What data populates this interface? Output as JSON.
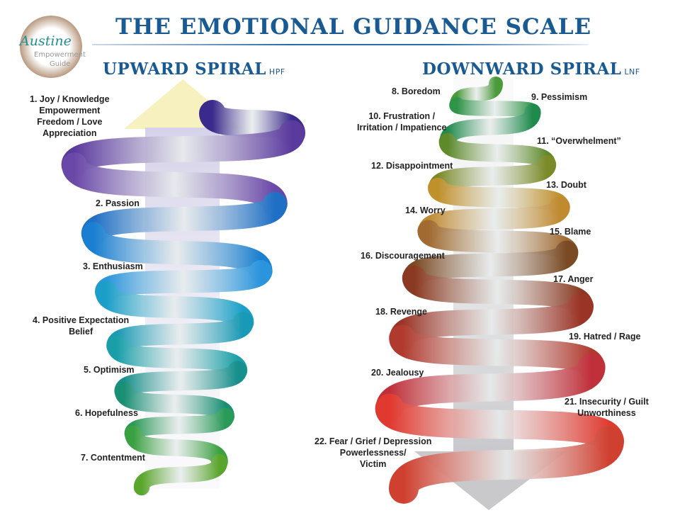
{
  "title": "THE EMOTIONAL GUIDANCE SCALE",
  "logo": {
    "script": "Austine",
    "line1": "Empowerment",
    "line2": "Guide"
  },
  "upward": {
    "heading": "UPWARD SPIRAL",
    "suffix": "HPF",
    "items": [
      [
        "1. Joy / Knowledge",
        "Empowerment",
        "Freedom / Love",
        "Appreciation"
      ],
      [
        "2. Passion"
      ],
      [
        "3. Enthusiasm"
      ],
      [
        "4. Positive Expectation",
        "Belief"
      ],
      [
        "5. Optimism"
      ],
      [
        "6. Hopefulness"
      ],
      [
        "7. Contentment"
      ]
    ],
    "colors": [
      "#3a2a8c",
      "#5b3a9e",
      "#6a48a8",
      "#1f6fc4",
      "#1a7fd0",
      "#2a95dc",
      "#1b9fc8",
      "#1899b5",
      "#1a9fa8",
      "#178f8c",
      "#1a8f74",
      "#2a9a58",
      "#3aa040",
      "#5aa52c"
    ]
  },
  "downward": {
    "heading": "DOWNWARD SPIRAL",
    "suffix": "LNF",
    "items": [
      [
        "8. Boredom"
      ],
      [
        "9. Pessimism"
      ],
      [
        "10. Frustration /",
        "Irritation / Impatience"
      ],
      [
        "11. “Overwhelment”"
      ],
      [
        "12. Disappointment"
      ],
      [
        "13. Doubt"
      ],
      [
        "14. Worry"
      ],
      [
        "15. Blame"
      ],
      [
        "16. Discouragement"
      ],
      [
        "17. Anger"
      ],
      [
        "18. Revenge"
      ],
      [
        "19. Hatred / Rage"
      ],
      [
        "20. Jealousy"
      ],
      [
        "21. Insecurity / Guilt",
        "Unworthiness"
      ],
      [
        "22. Fear / Grief / Depression",
        "Powerlessness/",
        "Victim"
      ]
    ],
    "colors": [
      "#4a9a3a",
      "#2e9448",
      "#1e8a4c",
      "#5e8a2a",
      "#7a8a28",
      "#c0902a",
      "#c08a30",
      "#a06a30",
      "#7a4a24",
      "#8a3a22",
      "#9a3426",
      "#b03a2e",
      "#c0303a",
      "#e03a30",
      "#d04030"
    ]
  }
}
